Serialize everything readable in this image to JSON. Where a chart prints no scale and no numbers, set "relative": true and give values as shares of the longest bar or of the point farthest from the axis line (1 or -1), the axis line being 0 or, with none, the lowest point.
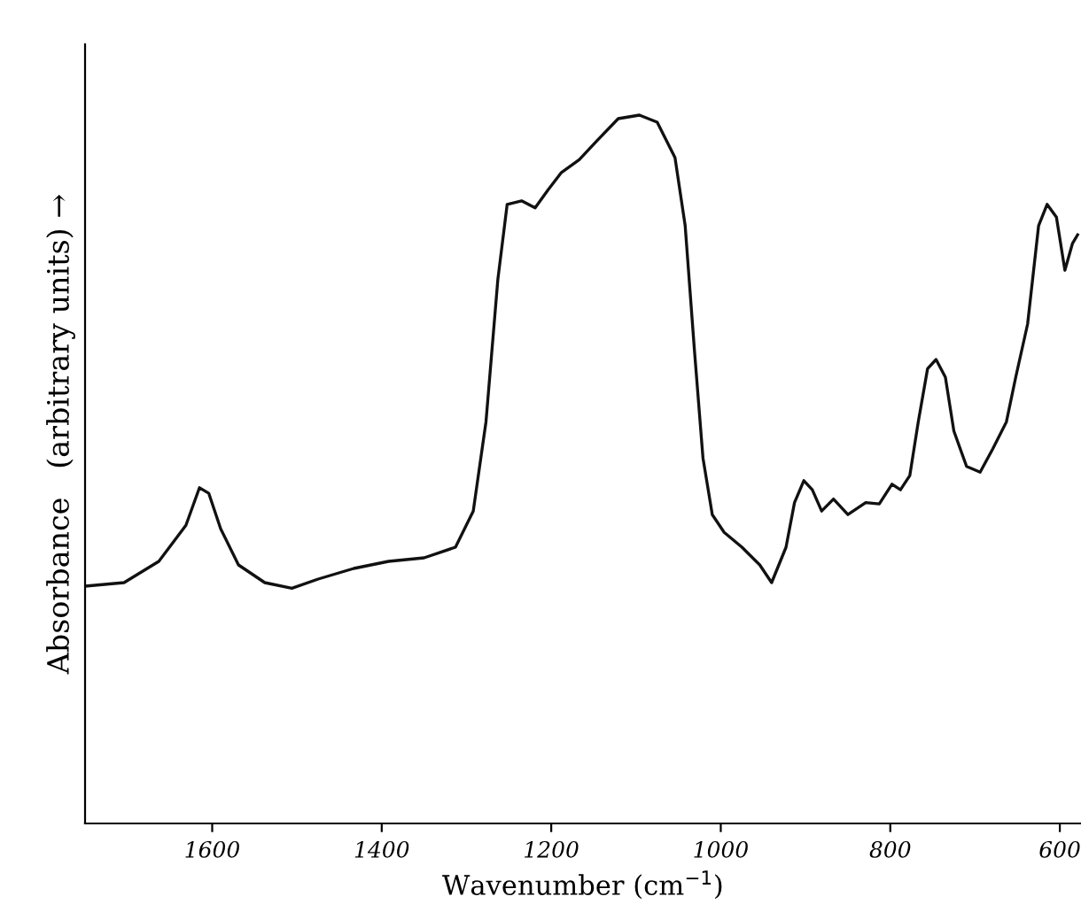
{
  "chart_data": {
    "type": "line",
    "relative": true,
    "xlabel": "Wavenumber (cm$^{−1}$)",
    "ylabel": "Absorbance   (arbitrary units) →",
    "xlim": [
      1750,
      575
    ],
    "xticks": [
      1600,
      1400,
      1200,
      1000,
      800,
      600
    ],
    "grid": false,
    "legend": false,
    "marker": "none",
    "line_style": "solid",
    "x": [
      1750,
      1704,
      1663,
      1631,
      1615,
      1604,
      1590,
      1569,
      1538,
      1506,
      1475,
      1433,
      1392,
      1350,
      1313,
      1292,
      1277,
      1263,
      1252,
      1235,
      1219,
      1204,
      1188,
      1167,
      1146,
      1121,
      1096,
      1075,
      1054,
      1042,
      1031,
      1021,
      1010,
      996,
      975,
      954,
      940,
      923,
      913,
      902,
      892,
      881,
      867,
      850,
      829,
      813,
      798,
      788,
      777,
      767,
      756,
      746,
      735,
      725,
      710,
      694,
      679,
      663,
      652,
      638,
      625,
      615,
      604,
      594,
      585,
      579
    ],
    "series": [
      {
        "color": "#111111",
        "values": [
          0.335,
          0.34,
          0.37,
          0.421,
          0.474,
          0.466,
          0.416,
          0.365,
          0.34,
          0.332,
          0.345,
          0.36,
          0.37,
          0.375,
          0.39,
          0.441,
          0.567,
          0.768,
          0.874,
          0.879,
          0.869,
          0.894,
          0.919,
          0.937,
          0.964,
          0.995,
          1.0,
          0.99,
          0.94,
          0.844,
          0.667,
          0.516,
          0.436,
          0.411,
          0.39,
          0.365,
          0.34,
          0.39,
          0.453,
          0.484,
          0.471,
          0.441,
          0.458,
          0.436,
          0.453,
          0.451,
          0.479,
          0.471,
          0.491,
          0.567,
          0.642,
          0.655,
          0.63,
          0.554,
          0.504,
          0.496,
          0.529,
          0.567,
          0.63,
          0.705,
          0.844,
          0.874,
          0.856,
          0.781,
          0.819,
          0.831
        ]
      }
    ]
  }
}
